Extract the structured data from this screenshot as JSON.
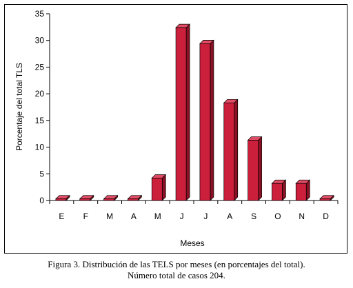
{
  "chart_data": {
    "type": "bar",
    "categories": [
      "E",
      "F",
      "M",
      "A",
      "M",
      "J",
      "J",
      "A",
      "S",
      "O",
      "N",
      "D"
    ],
    "values": [
      0.3,
      0.3,
      0.3,
      0.3,
      4.2,
      32.4,
      29.4,
      18.3,
      11.3,
      3.2,
      3.2,
      0.3
    ],
    "xlabel": "Meses",
    "ylabel": "Porcentaje del total TLS",
    "ylim": [
      0,
      35
    ],
    "yticks": [
      0,
      5,
      10,
      15,
      20,
      25,
      30,
      35
    ],
    "grid": false,
    "bar_color": "#cc1f3c",
    "bar_top_color": "#e04c64",
    "bar_side_color": "#8a1024"
  },
  "caption": {
    "line1": "Figura 3. Distribución de las TELS por meses (en porcentajes del total).",
    "line2": "Número total de casos 204."
  }
}
